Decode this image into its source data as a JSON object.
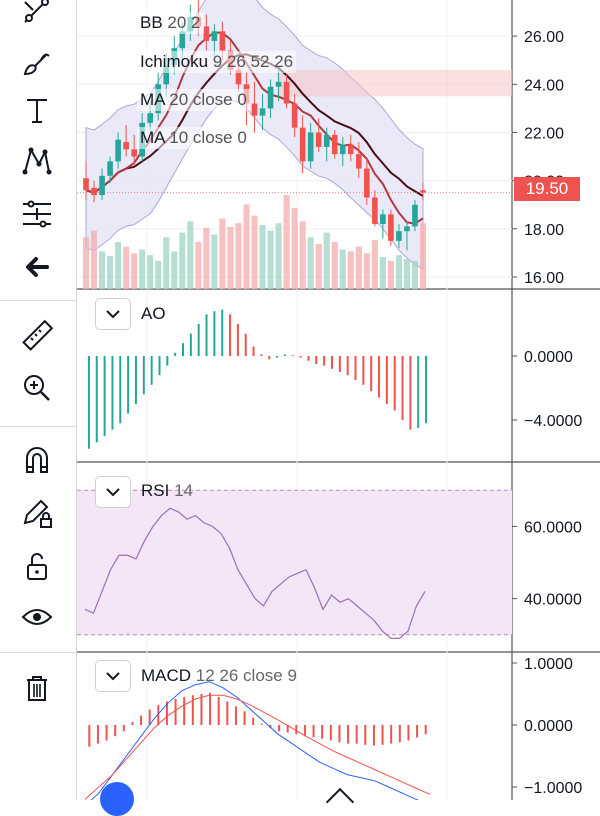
{
  "toolbar": {
    "tools": [
      "trend-line-tool",
      "brush-tool",
      "text-tool",
      "pattern-tool",
      "fib-tool",
      "back-arrow",
      "ruler-tool",
      "zoom-in-tool",
      "magnet-tool",
      "draw-lock-tool",
      "lock-tool",
      "visibility-tool",
      "trash-tool"
    ]
  },
  "main_pane": {
    "overlays": [
      {
        "name": "BB",
        "params": "20 2"
      },
      {
        "name": "Ichimoku",
        "params": "9 26 52 26"
      },
      {
        "name": "MA",
        "params": "20 close 0"
      },
      {
        "name": "MA",
        "params": "10 close 0"
      }
    ],
    "price_axis": [
      "26.00",
      "24.00",
      "22.00",
      "20.00",
      "18.00",
      "16.00"
    ],
    "last_price": "19.50",
    "colors": {
      "up": "#26a69a",
      "down": "#ef5350",
      "bb_fill": "#e6e6f6",
      "ma20": "#4a0d16",
      "ma10": "#b0383f",
      "cloud": "#f4c7c9"
    }
  },
  "ao_pane": {
    "title": "AO",
    "axis": [
      "0.0000",
      "−4.0000"
    ]
  },
  "rsi_pane": {
    "title": "RSI",
    "params": "14",
    "axis": [
      "60.0000",
      "40.0000"
    ],
    "colors": {
      "line": "#9c6fb7",
      "band": "#f4e6f6"
    }
  },
  "macd_pane": {
    "title": "MACD",
    "params": "12 26 close 9",
    "axis": [
      "1.0000",
      "0.0000",
      "−1.0000"
    ]
  },
  "chart_data": [
    {
      "type": "candlestick",
      "title": "",
      "ylim": [
        15.5,
        27.5
      ],
      "candles": [
        [
          20.1,
          20.8,
          19.2,
          19.6
        ],
        [
          19.7,
          20.0,
          19.1,
          19.4
        ],
        [
          19.4,
          20.5,
          19.2,
          20.2
        ],
        [
          20.2,
          21.0,
          19.9,
          20.8
        ],
        [
          20.8,
          22.0,
          20.5,
          21.7
        ],
        [
          21.6,
          22.3,
          21.0,
          21.3
        ],
        [
          21.3,
          21.9,
          20.6,
          21.0
        ],
        [
          21.0,
          22.8,
          20.8,
          22.4
        ],
        [
          22.4,
          23.3,
          22.0,
          22.8
        ],
        [
          22.8,
          24.5,
          22.5,
          24.0
        ],
        [
          24.0,
          25.3,
          23.5,
          24.8
        ],
        [
          24.8,
          26.0,
          24.4,
          25.5
        ],
        [
          25.5,
          26.6,
          25.0,
          26.2
        ],
        [
          26.2,
          27.3,
          25.8,
          26.8
        ],
        [
          26.8,
          27.5,
          26.0,
          26.4
        ],
        [
          26.4,
          26.9,
          25.4,
          25.8
        ],
        [
          25.8,
          26.5,
          25.2,
          26.2
        ],
        [
          26.2,
          26.6,
          25.0,
          25.4
        ],
        [
          25.4,
          25.8,
          24.4,
          24.6
        ],
        [
          24.6,
          25.0,
          23.7,
          24.0
        ],
        [
          24.0,
          24.5,
          22.3,
          23.2
        ],
        [
          23.2,
          24.1,
          22.0,
          22.7
        ],
        [
          22.7,
          23.6,
          22.1,
          23.0
        ],
        [
          23.0,
          24.2,
          22.6,
          23.9
        ],
        [
          23.9,
          24.6,
          23.3,
          24.1
        ],
        [
          24.1,
          24.4,
          23.0,
          23.2
        ],
        [
          23.2,
          23.6,
          21.8,
          22.2
        ],
        [
          22.2,
          22.7,
          20.3,
          20.8
        ],
        [
          20.8,
          22.4,
          20.5,
          22.0
        ],
        [
          22.0,
          22.6,
          21.2,
          21.4
        ],
        [
          21.4,
          22.2,
          20.8,
          21.9
        ],
        [
          21.9,
          22.1,
          20.9,
          21.1
        ],
        [
          21.1,
          21.8,
          20.6,
          21.5
        ],
        [
          21.5,
          21.9,
          20.8,
          21.1
        ],
        [
          21.1,
          21.6,
          20.1,
          20.5
        ],
        [
          20.5,
          20.9,
          19.0,
          19.3
        ],
        [
          19.3,
          19.6,
          18.1,
          18.2
        ],
        [
          18.2,
          18.8,
          17.6,
          18.6
        ],
        [
          18.6,
          18.8,
          17.3,
          17.5
        ],
        [
          17.5,
          18.2,
          17.2,
          17.9
        ],
        [
          17.9,
          18.3,
          17.1,
          18.1
        ],
        [
          18.1,
          19.2,
          17.9,
          19.0
        ],
        [
          19.6,
          19.9,
          19.2,
          19.5
        ]
      ],
      "volume": [
        0.55,
        0.62,
        0.4,
        0.35,
        0.5,
        0.45,
        0.38,
        0.42,
        0.36,
        0.3,
        0.55,
        0.4,
        0.6,
        0.72,
        0.5,
        0.65,
        0.58,
        0.75,
        0.66,
        0.7,
        0.9,
        0.78,
        0.68,
        0.62,
        0.7,
        1.0,
        0.86,
        0.72,
        0.55,
        0.48,
        0.6,
        0.5,
        0.42,
        0.4,
        0.45,
        0.38,
        0.52,
        0.34,
        0.3,
        0.36,
        0.32,
        0.3,
        0.7
      ],
      "ichimoku_cloud": {
        "top": 24.6,
        "bottom": 23.5
      },
      "ma20_end": 20.7,
      "ma10_end": 19.2
    },
    {
      "type": "bar",
      "title": "AO",
      "ylim": [
        -6,
        3.5
      ],
      "values": [
        -5.8,
        -5.4,
        -5.0,
        -4.6,
        -4.2,
        -3.6,
        -3.0,
        -2.4,
        -1.8,
        -1.2,
        -0.6,
        0.2,
        0.8,
        1.4,
        2.0,
        2.6,
        2.8,
        2.9,
        2.6,
        2.0,
        1.4,
        0.6,
        0.1,
        -0.2,
        -0.1,
        0.1,
        0.05,
        -0.1,
        -0.3,
        -0.5,
        -0.6,
        -0.8,
        -1.0,
        -1.2,
        -1.5,
        -1.8,
        -2.2,
        -2.6,
        -3.0,
        -3.4,
        -4.0,
        -4.6,
        -4.5,
        -4.2
      ]
    },
    {
      "type": "line",
      "title": "RSI 14",
      "ylim": [
        28,
        72
      ],
      "values": [
        37,
        36,
        42,
        48,
        52,
        52,
        51,
        56,
        60,
        63,
        65,
        64,
        62,
        63,
        61,
        60,
        58,
        54,
        48,
        44,
        40,
        38,
        42,
        44,
        46,
        47,
        48,
        43,
        37,
        41,
        39,
        40,
        38,
        36,
        34,
        31,
        29,
        29,
        31,
        38,
        42
      ],
      "band": [
        30,
        70
      ]
    },
    {
      "type": "bar",
      "title": "MACD 12 26 close 9",
      "ylim": [
        -1.25,
        1.1
      ],
      "histogram": [
        -0.35,
        -0.3,
        -0.25,
        -0.18,
        -0.1,
        0.05,
        0.15,
        0.25,
        0.32,
        0.38,
        0.42,
        0.45,
        0.48,
        0.5,
        0.52,
        0.45,
        0.38,
        0.3,
        0.22,
        0.12,
        0.02,
        -0.05,
        -0.1,
        -0.12,
        -0.15,
        -0.18,
        -0.2,
        -0.22,
        -0.25,
        -0.28,
        -0.3,
        -0.3,
        -0.32,
        -0.33,
        -0.32,
        -0.3,
        -0.28,
        -0.25,
        -0.2,
        -0.15
      ],
      "macd_line": [
        -1.3,
        -1.1,
        -0.8,
        -0.5,
        -0.2,
        0.1,
        0.35,
        0.55,
        0.65,
        0.7,
        0.6,
        0.45,
        0.25,
        0.05,
        -0.15,
        -0.3,
        -0.45,
        -0.6,
        -0.7,
        -0.8,
        -0.85,
        -0.9,
        -1.0,
        -1.1,
        -1.2,
        -1.3
      ],
      "signal_line": [
        -1.2,
        -1.0,
        -0.8,
        -0.55,
        -0.3,
        -0.05,
        0.15,
        0.3,
        0.42,
        0.48,
        0.48,
        0.42,
        0.32,
        0.2,
        0.08,
        -0.05,
        -0.18,
        -0.3,
        -0.42,
        -0.52,
        -0.62,
        -0.72,
        -0.82,
        -0.92,
        -1.02,
        -1.12
      ]
    }
  ]
}
